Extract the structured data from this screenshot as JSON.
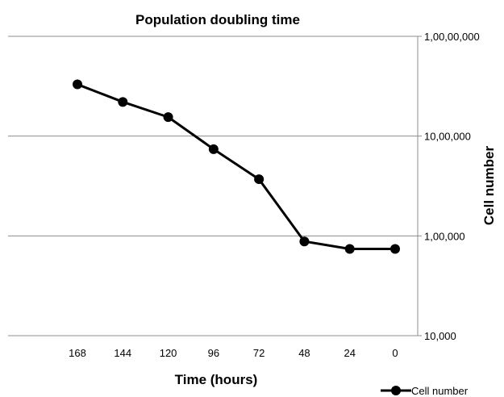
{
  "chart_data": {
    "type": "line",
    "title": "Population doubling time",
    "xlabel": "Time (hours)",
    "ylabel": "Cell number",
    "y_scale": "log",
    "y_axis_side": "right",
    "x_axis_reversed": true,
    "ylim": [
      10000,
      10000000
    ],
    "yticks": [
      "10,000",
      "1,00,000",
      "10,00,000",
      "1,00,00,000"
    ],
    "categories": [
      "168",
      "144",
      "120",
      "96",
      "72",
      "48",
      "24",
      "0"
    ],
    "grid": true,
    "legend_position": "bottom-right",
    "series": [
      {
        "name": "Cell number",
        "color": "#000000",
        "marker": "circle",
        "values": [
          3300000,
          2200000,
          1550000,
          740000,
          370000,
          88000,
          74000,
          74000
        ]
      }
    ]
  }
}
